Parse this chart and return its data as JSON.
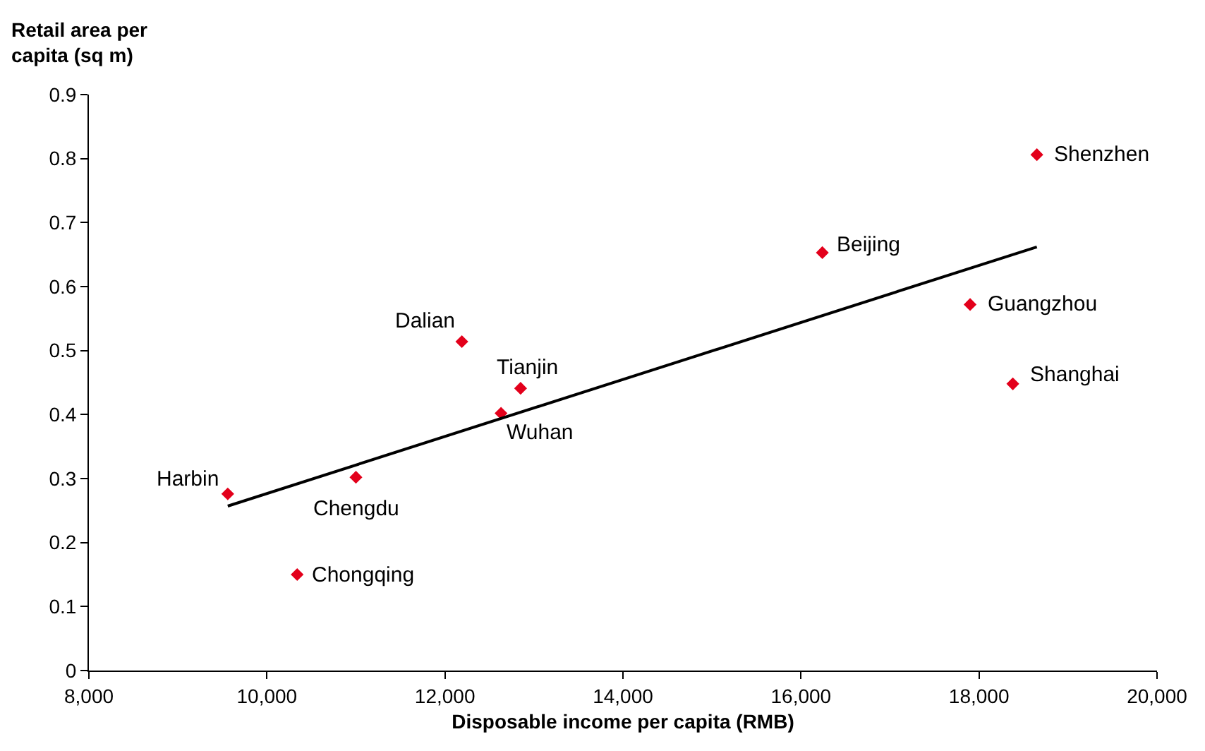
{
  "chart_data": {
    "type": "scatter",
    "xlabel": "Disposable income per capita (RMB)",
    "ylabel": "Retail area per capita (sq m)",
    "x": [
      9560,
      10340,
      11000,
      12190,
      12850,
      12630,
      16240,
      17900,
      18380,
      18650
    ],
    "series": [
      {
        "color": "#e3001b",
        "marker": "diamond",
        "values": [
          0.276,
          0.15,
          0.302,
          0.514,
          0.441,
          0.402,
          0.653,
          0.572,
          0.448,
          0.806
        ]
      },
      {
        "type": "line",
        "color": "#000000",
        "line_style": "solid",
        "marker": "none",
        "x": [
          9560,
          18650
        ],
        "values": [
          0.257,
          0.662
        ]
      }
    ],
    "annotations": [
      {
        "text": "Harbin",
        "x": 9560,
        "y": 0.276
      },
      {
        "text": "Chongqing",
        "x": 10340,
        "y": 0.15
      },
      {
        "text": "Chengdu",
        "x": 11000,
        "y": 0.302
      },
      {
        "text": "Dalian",
        "x": 12190,
        "y": 0.514
      },
      {
        "text": "Tianjin",
        "x": 12850,
        "y": 0.441
      },
      {
        "text": "Wuhan",
        "x": 12630,
        "y": 0.402
      },
      {
        "text": "Beijing",
        "x": 16240,
        "y": 0.653
      },
      {
        "text": "Guangzhou",
        "x": 17900,
        "y": 0.572
      },
      {
        "text": "Shanghai",
        "x": 18380,
        "y": 0.448
      },
      {
        "text": "Shenzhen",
        "x": 18650,
        "y": 0.806
      }
    ],
    "xlim": [
      8000,
      20000
    ],
    "xticks": [
      {
        "value": 8000,
        "label": "8,000"
      },
      {
        "value": 10000,
        "label": "10,000"
      },
      {
        "value": 12000,
        "label": "12,000"
      },
      {
        "value": 14000,
        "label": "14,000"
      },
      {
        "value": 16000,
        "label": "16,000"
      },
      {
        "value": 18000,
        "label": "18,000"
      },
      {
        "value": 20000,
        "label": "20,000"
      }
    ],
    "ylim": [
      0,
      0.9
    ],
    "yticks": [
      {
        "value": 0,
        "label": "0"
      },
      0.1,
      0.2,
      0.3,
      0.4,
      0.5,
      0.6,
      0.7,
      0.8,
      0.9
    ]
  }
}
